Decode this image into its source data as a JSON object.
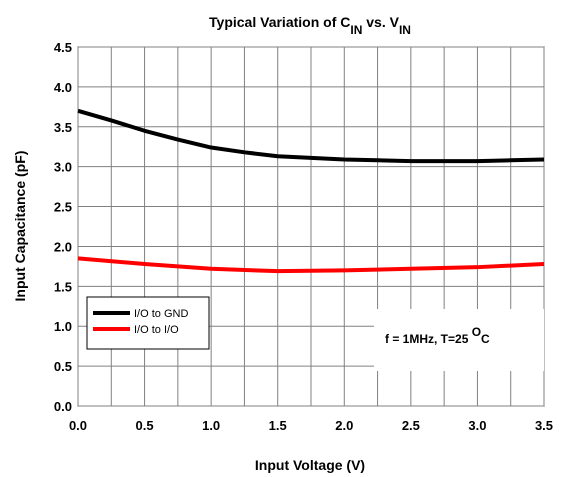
{
  "chart_data": {
    "type": "line",
    "title": {
      "prefix": "Typical Variation of C",
      "sub1": "IN",
      "middle": " vs. V",
      "sub2": "IN"
    },
    "xlabel": "Input Voltage (V)",
    "ylabel": "Input Capacitance (pF)",
    "xlim": [
      0,
      3.5
    ],
    "ylim": [
      0,
      4.5
    ],
    "xticks": [
      "0.0",
      "0.5",
      "1.0",
      "1.5",
      "2.0",
      "2.5",
      "3.0",
      "3.5"
    ],
    "yticks": [
      "0.0",
      "0.5",
      "1.0",
      "1.5",
      "2.0",
      "2.5",
      "3.0",
      "3.5",
      "4.0",
      "4.5"
    ],
    "grid": true,
    "legend_position": "bottom-left",
    "annotation": {
      "prefix": "f = 1MHz, T=25 ",
      "sup": "O",
      "suffix": "C"
    },
    "series": [
      {
        "name": "I/O to GND",
        "color": "#000000",
        "x": [
          0.0,
          0.25,
          0.5,
          0.75,
          1.0,
          1.25,
          1.5,
          1.75,
          2.0,
          2.25,
          2.5,
          2.75,
          3.0,
          3.25,
          3.5
        ],
        "y": [
          3.7,
          3.58,
          3.45,
          3.34,
          3.24,
          3.18,
          3.13,
          3.11,
          3.09,
          3.08,
          3.07,
          3.07,
          3.07,
          3.08,
          3.09
        ]
      },
      {
        "name": "I/O to I/O",
        "color": "#ff0000",
        "x": [
          0.0,
          0.5,
          1.0,
          1.5,
          2.0,
          2.5,
          3.0,
          3.5
        ],
        "y": [
          1.85,
          1.78,
          1.72,
          1.69,
          1.7,
          1.72,
          1.74,
          1.78
        ]
      }
    ]
  }
}
